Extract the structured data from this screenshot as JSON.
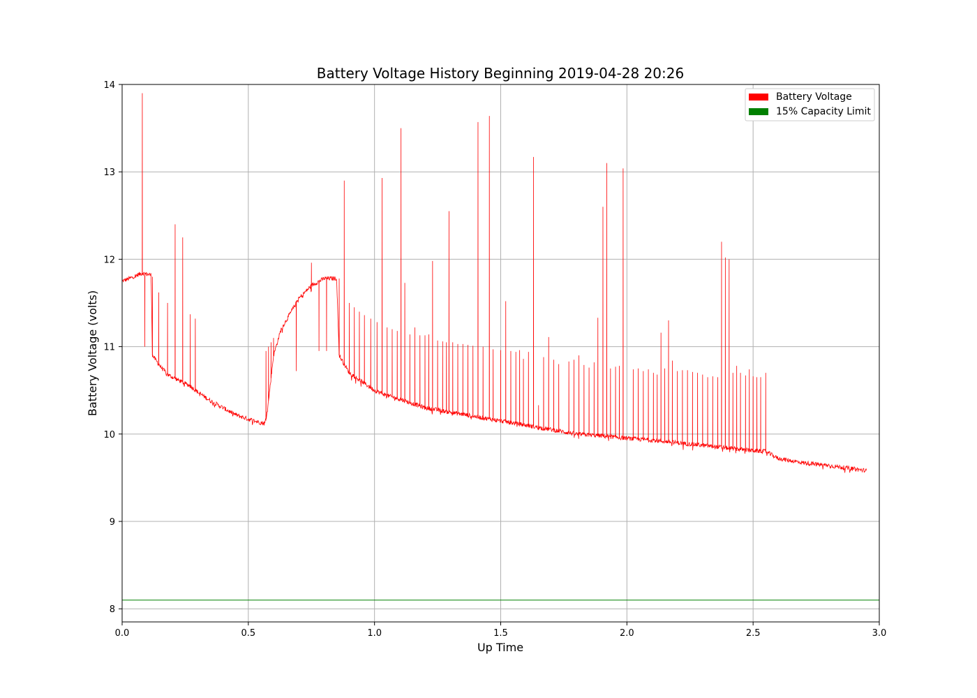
{
  "chart_data": {
    "type": "line",
    "title": "Battery Voltage History Beginning 2019-04-28 20:26",
    "xlabel": "Up Time",
    "ylabel": "Battery Voltage (volts)",
    "xlim": [
      0.0,
      3.0
    ],
    "ylim": [
      7.85,
      14.0
    ],
    "xticks": [
      0.0,
      0.5,
      1.0,
      1.5,
      2.0,
      2.5,
      3.0
    ],
    "xtick_labels": [
      "0.0",
      "0.5",
      "1.0",
      "1.5",
      "2.0",
      "2.5",
      "3.0"
    ],
    "yticks": [
      8,
      9,
      10,
      11,
      12,
      13,
      14
    ],
    "ytick_labels": [
      "8",
      "9",
      "10",
      "11",
      "12",
      "13",
      "14"
    ],
    "grid": true,
    "legend_position": "top-right",
    "series": [
      {
        "name": "Battery Voltage",
        "color": "#ff0000",
        "baseline": [
          [
            0.0,
            11.75
          ],
          [
            0.03,
            11.78
          ],
          [
            0.06,
            11.82
          ],
          [
            0.08,
            11.84
          ],
          [
            0.115,
            11.82
          ],
          [
            0.12,
            10.9
          ],
          [
            0.15,
            10.78
          ],
          [
            0.18,
            10.68
          ],
          [
            0.22,
            10.62
          ],
          [
            0.27,
            10.55
          ],
          [
            0.3,
            10.48
          ],
          [
            0.35,
            10.38
          ],
          [
            0.4,
            10.3
          ],
          [
            0.45,
            10.22
          ],
          [
            0.5,
            10.17
          ],
          [
            0.55,
            10.13
          ],
          [
            0.565,
            10.12
          ],
          [
            0.575,
            10.25
          ],
          [
            0.6,
            10.9
          ],
          [
            0.63,
            11.2
          ],
          [
            0.66,
            11.35
          ],
          [
            0.7,
            11.55
          ],
          [
            0.75,
            11.7
          ],
          [
            0.8,
            11.78
          ],
          [
            0.85,
            11.78
          ],
          [
            0.86,
            10.9
          ],
          [
            0.9,
            10.7
          ],
          [
            0.95,
            10.6
          ],
          [
            1.0,
            10.5
          ],
          [
            1.05,
            10.44
          ],
          [
            1.1,
            10.4
          ],
          [
            1.2,
            10.3
          ],
          [
            1.3,
            10.25
          ],
          [
            1.4,
            10.2
          ],
          [
            1.5,
            10.15
          ],
          [
            1.6,
            10.1
          ],
          [
            1.7,
            10.05
          ],
          [
            1.8,
            10.0
          ],
          [
            1.9,
            9.98
          ],
          [
            2.0,
            9.95
          ],
          [
            2.1,
            9.93
          ],
          [
            2.2,
            9.9
          ],
          [
            2.3,
            9.87
          ],
          [
            2.4,
            9.84
          ],
          [
            2.5,
            9.81
          ],
          [
            2.55,
            9.8
          ],
          [
            2.6,
            9.72
          ],
          [
            2.7,
            9.67
          ],
          [
            2.8,
            9.64
          ],
          [
            2.9,
            9.6
          ],
          [
            2.95,
            9.58
          ]
        ],
        "spikes": [
          [
            0.08,
            13.9
          ],
          [
            0.09,
            11.0
          ],
          [
            0.12,
            11.8
          ],
          [
            0.145,
            11.62
          ],
          [
            0.18,
            11.5
          ],
          [
            0.21,
            12.4
          ],
          [
            0.24,
            12.25
          ],
          [
            0.27,
            11.37
          ],
          [
            0.29,
            11.32
          ],
          [
            0.57,
            10.95
          ],
          [
            0.58,
            11.0
          ],
          [
            0.59,
            11.05
          ],
          [
            0.6,
            11.1
          ],
          [
            0.69,
            10.72
          ],
          [
            0.75,
            11.96
          ],
          [
            0.78,
            10.95
          ],
          [
            0.81,
            10.95
          ],
          [
            0.86,
            11.78
          ],
          [
            0.88,
            12.9
          ],
          [
            0.9,
            11.5
          ],
          [
            0.92,
            11.45
          ],
          [
            0.94,
            11.4
          ],
          [
            0.96,
            11.36
          ],
          [
            0.985,
            11.32
          ],
          [
            1.01,
            11.28
          ],
          [
            1.03,
            12.93
          ],
          [
            1.05,
            11.22
          ],
          [
            1.07,
            11.2
          ],
          [
            1.09,
            11.18
          ],
          [
            1.105,
            13.5
          ],
          [
            1.12,
            11.73
          ],
          [
            1.14,
            11.14
          ],
          [
            1.16,
            11.22
          ],
          [
            1.18,
            11.13
          ],
          [
            1.2,
            11.13
          ],
          [
            1.215,
            11.14
          ],
          [
            1.23,
            11.98
          ],
          [
            1.25,
            11.07
          ],
          [
            1.27,
            11.06
          ],
          [
            1.285,
            11.05
          ],
          [
            1.295,
            12.55
          ],
          [
            1.31,
            11.05
          ],
          [
            1.33,
            11.03
          ],
          [
            1.35,
            11.03
          ],
          [
            1.37,
            11.02
          ],
          [
            1.39,
            11.01
          ],
          [
            1.41,
            13.57
          ],
          [
            1.43,
            11.0
          ],
          [
            1.455,
            13.64
          ],
          [
            1.47,
            10.97
          ],
          [
            1.5,
            10.96
          ],
          [
            1.52,
            11.52
          ],
          [
            1.54,
            10.95
          ],
          [
            1.56,
            10.94
          ],
          [
            1.575,
            10.96
          ],
          [
            1.59,
            10.86
          ],
          [
            1.61,
            10.94
          ],
          [
            1.63,
            13.17
          ],
          [
            1.65,
            10.33
          ],
          [
            1.67,
            10.88
          ],
          [
            1.69,
            11.11
          ],
          [
            1.71,
            10.85
          ],
          [
            1.73,
            10.8
          ],
          [
            1.77,
            10.83
          ],
          [
            1.79,
            10.85
          ],
          [
            1.81,
            10.9
          ],
          [
            1.83,
            10.79
          ],
          [
            1.85,
            10.76
          ],
          [
            1.87,
            10.82
          ],
          [
            1.885,
            11.33
          ],
          [
            1.905,
            12.6
          ],
          [
            1.92,
            13.1
          ],
          [
            1.935,
            10.75
          ],
          [
            1.955,
            10.77
          ],
          [
            1.97,
            10.78
          ],
          [
            1.985,
            13.04
          ],
          [
            2.025,
            10.74
          ],
          [
            2.045,
            10.75
          ],
          [
            2.065,
            10.72
          ],
          [
            2.085,
            10.74
          ],
          [
            2.105,
            10.7
          ],
          [
            2.12,
            10.68
          ],
          [
            2.135,
            11.16
          ],
          [
            2.15,
            10.75
          ],
          [
            2.165,
            11.3
          ],
          [
            2.18,
            10.84
          ],
          [
            2.2,
            10.72
          ],
          [
            2.22,
            10.73
          ],
          [
            2.24,
            10.73
          ],
          [
            2.26,
            10.71
          ],
          [
            2.28,
            10.7
          ],
          [
            2.3,
            10.68
          ],
          [
            2.32,
            10.65
          ],
          [
            2.34,
            10.66
          ],
          [
            2.36,
            10.65
          ],
          [
            2.375,
            12.2
          ],
          [
            2.39,
            12.02
          ],
          [
            2.405,
            12.0
          ],
          [
            2.42,
            10.7
          ],
          [
            2.435,
            10.78
          ],
          [
            2.45,
            10.7
          ],
          [
            2.47,
            10.67
          ],
          [
            2.485,
            10.74
          ],
          [
            2.5,
            10.66
          ],
          [
            2.515,
            10.65
          ],
          [
            2.53,
            10.65
          ],
          [
            2.55,
            10.7
          ]
        ]
      },
      {
        "name": "15% Capacity Limit",
        "color": "#008000",
        "value": 8.1
      }
    ]
  }
}
